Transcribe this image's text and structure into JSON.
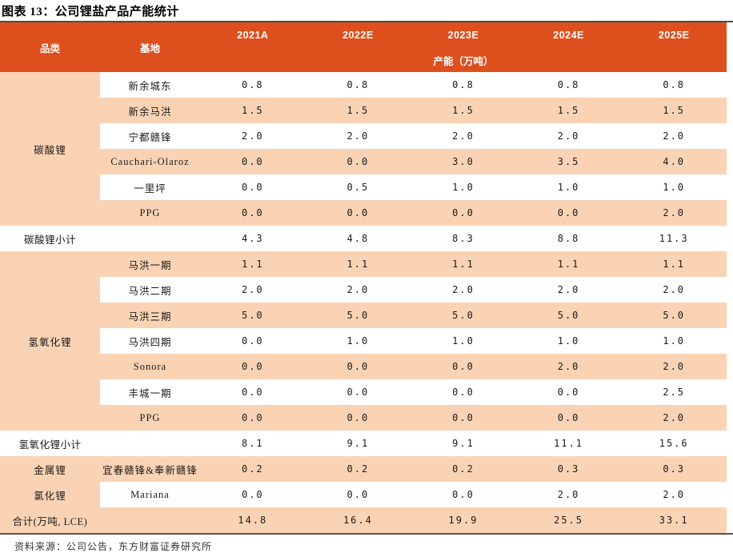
{
  "title": "图表 13：公司锂盐产品产能统计",
  "source_note": "资料来源：公司公告，东方财富证券研究所",
  "colors": {
    "header_bg": "#DE4F1E",
    "stripe_bg": "#FAD3B4",
    "top_rule": "#4d4d4d",
    "bottom_rule": "#555555",
    "header_text": "#ffffff"
  },
  "table": {
    "headers": {
      "category": "品类",
      "base": "基地",
      "years": [
        "2021A",
        "2022E",
        "2023E",
        "2024E",
        "2025E"
      ],
      "unit": "产能（万吨）"
    },
    "rows": [
      {
        "type": "data",
        "shade": "white",
        "category": {
          "label": "碳酸锂",
          "span": 6
        },
        "base": "新余城东",
        "values": [
          "0.8",
          "0.8",
          "0.8",
          "0.8",
          "0.8"
        ]
      },
      {
        "type": "data",
        "shade": "peach",
        "base": "新余马洪",
        "values": [
          "1.5",
          "1.5",
          "1.5",
          "1.5",
          "1.5"
        ]
      },
      {
        "type": "data",
        "shade": "white",
        "base": "宁都赣锋",
        "values": [
          "2.0",
          "2.0",
          "2.0",
          "2.0",
          "2.0"
        ]
      },
      {
        "type": "data",
        "shade": "peach",
        "base": "Cauchari-Olaroz",
        "values": [
          "0.0",
          "0.0",
          "3.0",
          "3.5",
          "4.0"
        ]
      },
      {
        "type": "data",
        "shade": "white",
        "base": "一里坪",
        "values": [
          "0.0",
          "0.5",
          "1.0",
          "1.0",
          "1.0"
        ]
      },
      {
        "type": "data",
        "shade": "peach",
        "base": "PPG",
        "values": [
          "0.0",
          "0.0",
          "0.0",
          "0.0",
          "2.0"
        ]
      },
      {
        "type": "subtotal",
        "shade": "white",
        "label": "碳酸锂小计",
        "values": [
          "4.3",
          "4.8",
          "8.3",
          "8.8",
          "11.3"
        ]
      },
      {
        "type": "data",
        "shade": "peach",
        "category": {
          "label": "氢氧化锂",
          "span": 7
        },
        "base": "马洪一期",
        "values": [
          "1.1",
          "1.1",
          "1.1",
          "1.1",
          "1.1"
        ]
      },
      {
        "type": "data",
        "shade": "white",
        "base": "马洪二期",
        "values": [
          "2.0",
          "2.0",
          "2.0",
          "2.0",
          "2.0"
        ]
      },
      {
        "type": "data",
        "shade": "peach",
        "base": "马洪三期",
        "values": [
          "5.0",
          "5.0",
          "5.0",
          "5.0",
          "5.0"
        ]
      },
      {
        "type": "data",
        "shade": "white",
        "base": "马洪四期",
        "values": [
          "0.0",
          "1.0",
          "1.0",
          "1.0",
          "1.0"
        ]
      },
      {
        "type": "data",
        "shade": "peach",
        "base": "Sonora",
        "values": [
          "0.0",
          "0.0",
          "0.0",
          "2.0",
          "2.0"
        ]
      },
      {
        "type": "data",
        "shade": "white",
        "base": "丰城一期",
        "values": [
          "0.0",
          "0.0",
          "0.0",
          "0.0",
          "2.5"
        ]
      },
      {
        "type": "data",
        "shade": "peach",
        "base": "PPG",
        "values": [
          "0.0",
          "0.0",
          "0.0",
          "0.0",
          "2.0"
        ]
      },
      {
        "type": "subtotal",
        "shade": "white",
        "label": "氢氧化锂小计",
        "values": [
          "8.1",
          "9.1",
          "9.1",
          "11.1",
          "15.6"
        ]
      },
      {
        "type": "data",
        "shade": "peach",
        "category": {
          "label": "金属锂",
          "span": 1
        },
        "base": "宜春赣锋&奉新赣锋",
        "values": [
          "0.2",
          "0.2",
          "0.2",
          "0.3",
          "0.3"
        ]
      },
      {
        "type": "data",
        "shade": "white",
        "category": {
          "label": "氯化锂",
          "span": 1
        },
        "base": "Mariana",
        "values": [
          "0.0",
          "0.0",
          "0.0",
          "2.0",
          "2.0"
        ]
      },
      {
        "type": "total",
        "shade": "peach",
        "label": "合计(万吨, LCE)",
        "values": [
          "14.8",
          "16.4",
          "19.9",
          "25.5",
          "33.1"
        ]
      }
    ]
  }
}
